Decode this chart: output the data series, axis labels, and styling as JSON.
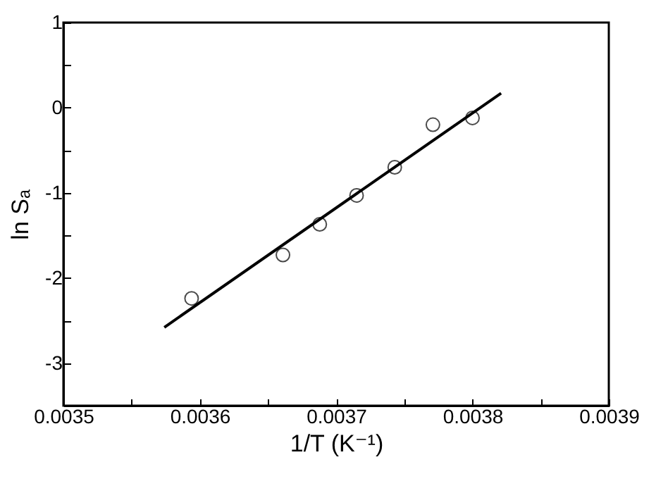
{
  "chart_data": {
    "type": "scatter",
    "xlabel": "1/T (K⁻¹)",
    "ylabel": "ln Sₐ",
    "xlim": [
      0.0035,
      0.0039
    ],
    "ylim": [
      -3.5,
      1
    ],
    "xticks": [
      0.0035,
      {
        "value": 0.00355,
        "label": null
      },
      0.0036,
      {
        "value": 0.00365,
        "label": null
      },
      0.0037,
      {
        "value": 0.00375,
        "label": null
      },
      0.0038,
      {
        "value": 0.00385,
        "label": null
      },
      0.0039
    ],
    "yticks": [
      {
        "value": -3.5,
        "label": null
      },
      -3,
      {
        "value": -2.5,
        "label": null
      },
      -2,
      {
        "value": -1.5,
        "label": null
      },
      -1,
      {
        "value": -0.5,
        "label": null
      },
      0,
      {
        "value": 0.5,
        "label": null
      },
      1
    ],
    "grid": false,
    "legend": false,
    "series": [
      {
        "type": "scatter",
        "marker": "circle",
        "color": "#000000",
        "x": [
          0.003594,
          0.003661,
          0.003688,
          0.003715,
          0.003743,
          0.003771,
          0.0038
        ],
        "values": [
          -2.24,
          -1.73,
          -1.37,
          -1.03,
          -0.7,
          -0.2,
          -0.12
        ]
      },
      {
        "type": "line",
        "marker": "none",
        "color": "#000000",
        "x": [
          0.003574,
          0.003821
        ],
        "values": [
          -2.58,
          0.17
        ]
      }
    ]
  }
}
